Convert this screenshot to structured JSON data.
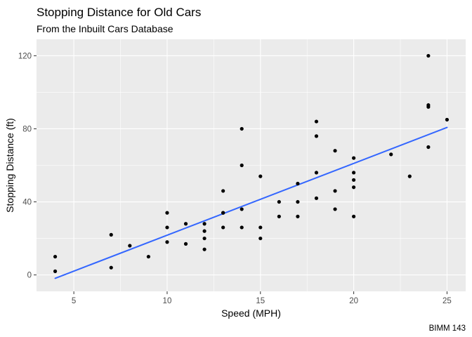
{
  "chart_data": {
    "type": "scatter",
    "title": "Stopping Distance for Old Cars",
    "subtitle": "From the Inbuilt Cars Database",
    "xlabel": "Speed (MPH)",
    "ylabel": "Stopping Distance (ft)",
    "caption": "BIMM 143",
    "xlim": [
      3.0,
      26.0
    ],
    "ylim": [
      -9.0,
      129.0
    ],
    "x_ticks": [
      5,
      10,
      15,
      20,
      25
    ],
    "y_ticks": [
      0,
      40,
      80,
      120
    ],
    "x_tick_labels": [
      "5",
      "10",
      "15",
      "20",
      "25"
    ],
    "y_tick_labels": [
      "0",
      "40",
      "80",
      "120"
    ],
    "grid": true,
    "background": "#ebebeb",
    "grid_color": "#ffffff",
    "point_color": "#000000",
    "trend_color": "#3366ff",
    "points": [
      [
        4,
        2
      ],
      [
        4,
        10
      ],
      [
        7,
        4
      ],
      [
        7,
        22
      ],
      [
        8,
        16
      ],
      [
        9,
        10
      ],
      [
        10,
        18
      ],
      [
        10,
        26
      ],
      [
        10,
        34
      ],
      [
        11,
        17
      ],
      [
        11,
        28
      ],
      [
        12,
        14
      ],
      [
        12,
        20
      ],
      [
        12,
        24
      ],
      [
        12,
        28
      ],
      [
        13,
        26
      ],
      [
        13,
        34
      ],
      [
        13,
        34
      ],
      [
        13,
        46
      ],
      [
        14,
        26
      ],
      [
        14,
        36
      ],
      [
        14,
        60
      ],
      [
        14,
        80
      ],
      [
        15,
        20
      ],
      [
        15,
        26
      ],
      [
        15,
        54
      ],
      [
        16,
        32
      ],
      [
        16,
        40
      ],
      [
        17,
        32
      ],
      [
        17,
        40
      ],
      [
        17,
        50
      ],
      [
        18,
        42
      ],
      [
        18,
        56
      ],
      [
        18,
        76
      ],
      [
        18,
        84
      ],
      [
        19,
        36
      ],
      [
        19,
        46
      ],
      [
        19,
        68
      ],
      [
        20,
        32
      ],
      [
        20,
        48
      ],
      [
        20,
        52
      ],
      [
        20,
        56
      ],
      [
        20,
        64
      ],
      [
        22,
        66
      ],
      [
        23,
        54
      ],
      [
        24,
        70
      ],
      [
        24,
        92
      ],
      [
        24,
        93
      ],
      [
        24,
        120
      ],
      [
        25,
        85
      ]
    ],
    "trend_line": {
      "method": "linear",
      "x": [
        4,
        25
      ],
      "y": [
        -1.849,
        80.731
      ]
    }
  }
}
